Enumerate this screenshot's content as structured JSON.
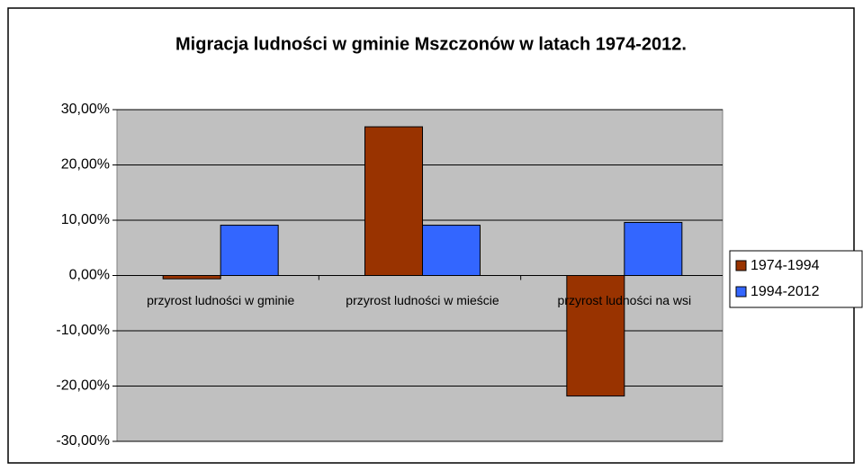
{
  "chart_data": {
    "type": "bar",
    "title": "Migracja ludności w gminie Mszczonów w latach 1974-2012.",
    "categories": [
      "przyrost ludności w gminie",
      "przyrost ludności w mieście",
      "przyrost ludności na wsi"
    ],
    "series": [
      {
        "name": "1974-1994",
        "color": "#993300",
        "values": [
          -0.6,
          26.9,
          -21.8
        ]
      },
      {
        "name": "1994-2012",
        "color": "#3366ff",
        "values": [
          9.1,
          9.1,
          9.6
        ]
      }
    ],
    "ylim": [
      -30,
      30
    ],
    "yticks": [
      {
        "value": -30,
        "label": "-30,00%"
      },
      {
        "value": -20,
        "label": "-20,00%"
      },
      {
        "value": -10,
        "label": "-10,00%"
      },
      {
        "value": 0,
        "label": "0,00%"
      },
      {
        "value": 10,
        "label": "10,00%"
      },
      {
        "value": 20,
        "label": "20,00%"
      },
      {
        "value": 30,
        "label": "30,00%"
      }
    ],
    "grid": true,
    "legend": "right"
  }
}
